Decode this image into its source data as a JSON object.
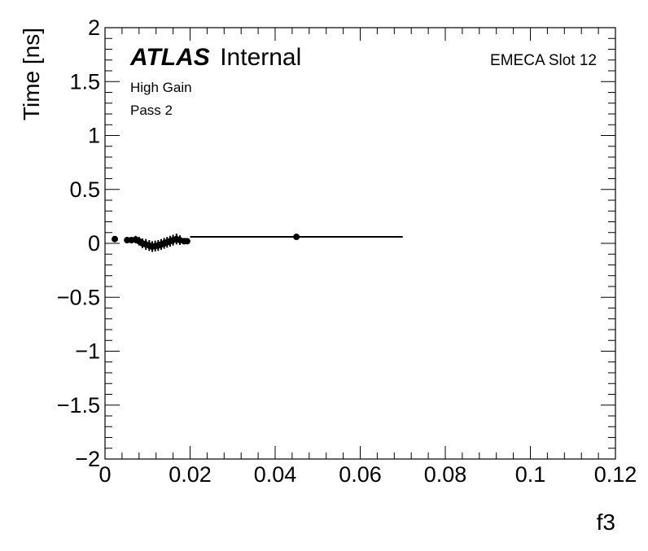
{
  "chart_data": {
    "type": "scatter",
    "xlabel": "f3",
    "ylabel": "Time [ns]",
    "xlim": [
      0,
      0.12
    ],
    "ylim": [
      -2,
      2
    ],
    "x_ticks": [
      0,
      0.02,
      0.04,
      0.06,
      0.08,
      0.1,
      0.12
    ],
    "x_tick_labels": [
      "0",
      "0.02",
      "0.04",
      "0.06",
      "0.08",
      "0.1",
      "0.12"
    ],
    "y_ticks": [
      -2,
      -1.5,
      -1,
      -0.5,
      0,
      0.5,
      1,
      1.5,
      2
    ],
    "y_tick_labels": [
      "−2",
      "−1.5",
      "−1",
      "−0.5",
      "0",
      "0.5",
      "1",
      "1.5",
      "2"
    ],
    "annotations": {
      "atlas_bold": "ATLAS",
      "atlas_normal": "Internal",
      "line1": "High Gain",
      "line2": "Pass 2",
      "region": "EMECA Slot 12"
    },
    "series": [
      {
        "points": [
          {
            "x": 0.0023,
            "y": 0.04,
            "yerr": 0.02
          },
          {
            "x": 0.0052,
            "y": 0.03,
            "yerr": 0.02
          },
          {
            "x": 0.0062,
            "y": 0.03,
            "yerr": 0.03
          },
          {
            "x": 0.0072,
            "y": 0.035,
            "yerr": 0.035
          },
          {
            "x": 0.008,
            "y": 0.02,
            "yerr": 0.04
          },
          {
            "x": 0.0088,
            "y": 0.0,
            "yerr": 0.045
          },
          {
            "x": 0.0096,
            "y": -0.01,
            "yerr": 0.05
          },
          {
            "x": 0.0104,
            "y": -0.02,
            "yerr": 0.05
          },
          {
            "x": 0.0111,
            "y": -0.03,
            "yerr": 0.05
          },
          {
            "x": 0.0118,
            "y": -0.025,
            "yerr": 0.05
          },
          {
            "x": 0.0125,
            "y": -0.02,
            "yerr": 0.05
          },
          {
            "x": 0.0132,
            "y": -0.01,
            "yerr": 0.05
          },
          {
            "x": 0.0139,
            "y": 0.0,
            "yerr": 0.05
          },
          {
            "x": 0.0146,
            "y": 0.01,
            "yerr": 0.05
          },
          {
            "x": 0.0153,
            "y": 0.02,
            "yerr": 0.05
          },
          {
            "x": 0.016,
            "y": 0.03,
            "yerr": 0.05
          },
          {
            "x": 0.0168,
            "y": 0.04,
            "yerr": 0.05
          },
          {
            "x": 0.0176,
            "y": 0.03,
            "yerr": 0.045
          },
          {
            "x": 0.0186,
            "y": 0.02,
            "yerr": 0.03
          },
          {
            "x": 0.0193,
            "y": 0.02,
            "yerr": 0.02
          },
          {
            "x": 0.045,
            "y": 0.06,
            "yerr": 0.0,
            "xlo": 0.02,
            "xhi": 0.07
          }
        ]
      }
    ]
  }
}
